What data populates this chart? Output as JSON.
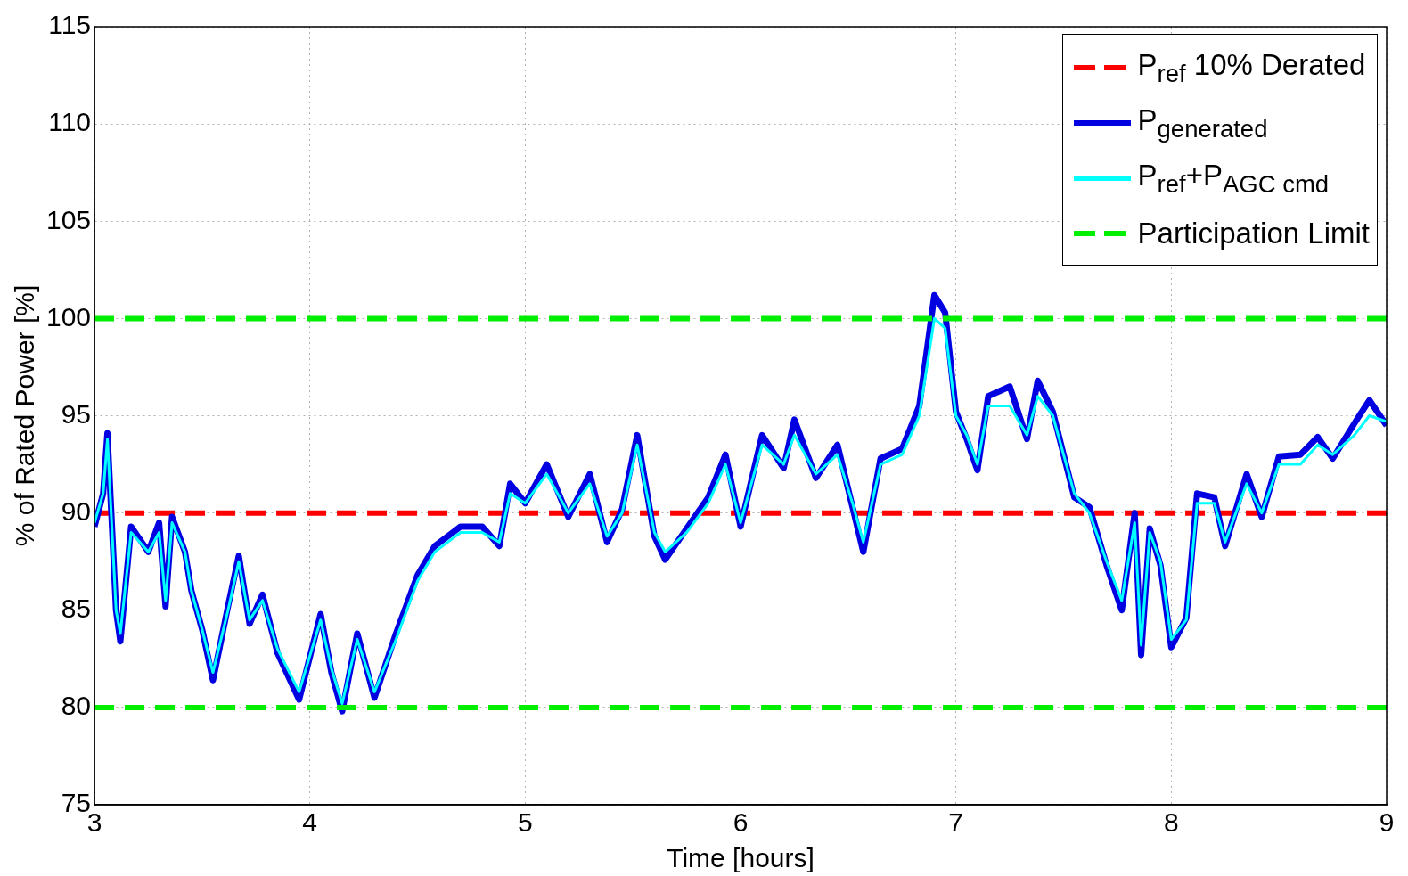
{
  "chart_data": {
    "type": "line",
    "xlabel": "Time [hours]",
    "ylabel": "% of Rated Power [%]",
    "xlim": [
      3,
      9
    ],
    "xticks": [
      3,
      4,
      5,
      6,
      7,
      8,
      9
    ],
    "ylim": [
      75,
      115
    ],
    "yticks": [
      75,
      80,
      85,
      90,
      95,
      100,
      105,
      110,
      115
    ],
    "grid": true,
    "legend": "top right",
    "marker": "none",
    "series": [
      {
        "name": "P$_{ref}$ 10% Derated",
        "color": "#ff0000",
        "line_style": "dashed",
        "x": [
          3,
          9
        ],
        "values": [
          90,
          90
        ]
      },
      {
        "name": "P$_{generated}$",
        "color": "#0000e0",
        "line_style": "solid",
        "x": [
          3,
          3.04,
          3.06,
          3.1,
          3.12,
          3.17,
          3.25,
          3.3,
          3.33,
          3.36,
          3.42,
          3.45,
          3.5,
          3.55,
          3.62,
          3.67,
          3.72,
          3.78,
          3.85,
          3.95,
          4.05,
          4.1,
          4.15,
          4.22,
          4.3,
          4.4,
          4.5,
          4.58,
          4.7,
          4.8,
          4.88,
          4.93,
          5,
          5.1,
          5.2,
          5.3,
          5.38,
          5.45,
          5.52,
          5.6,
          5.65,
          5.75,
          5.85,
          5.93,
          6,
          6.1,
          6.2,
          6.25,
          6.35,
          6.45,
          6.52,
          6.57,
          6.65,
          6.75,
          6.83,
          6.9,
          6.95,
          7,
          7.05,
          7.1,
          7.15,
          7.25,
          7.33,
          7.38,
          7.45,
          7.55,
          7.62,
          7.7,
          7.77,
          7.83,
          7.86,
          7.9,
          7.95,
          8,
          8.07,
          8.12,
          8.2,
          8.25,
          8.35,
          8.42,
          8.5,
          8.6,
          8.68,
          8.75,
          8.85,
          8.92,
          9
        ],
        "values": [
          89.3,
          91,
          94.1,
          85,
          83.4,
          89.3,
          88,
          89.5,
          85.2,
          89.8,
          88,
          86,
          84,
          81.4,
          85.2,
          87.8,
          84.3,
          85.8,
          82.8,
          80.4,
          84.8,
          81.8,
          79.8,
          83.8,
          80.5,
          83.8,
          86.8,
          88.3,
          89.3,
          89.3,
          88.3,
          91.5,
          90.5,
          92.5,
          89.8,
          92,
          88.5,
          90.2,
          94,
          88.8,
          87.6,
          89.2,
          90.8,
          93,
          89.3,
          94,
          92.3,
          94.8,
          91.8,
          93.5,
          90.3,
          88,
          92.8,
          93.3,
          95.5,
          101.2,
          100.3,
          95.2,
          93.8,
          92.2,
          96,
          96.5,
          93.8,
          96.8,
          95.2,
          90.8,
          90.3,
          87.3,
          85,
          90,
          82.7,
          89.2,
          87.3,
          83.1,
          84.6,
          91,
          90.8,
          88.3,
          92,
          89.8,
          92.9,
          93,
          93.9,
          92.8,
          94.6,
          95.8,
          94.5
        ]
      },
      {
        "name": "P$_{ref}$+P$_{AGC cmd}$",
        "color": "#00ffff",
        "line_style": "solid",
        "x": [
          3,
          3.04,
          3.06,
          3.1,
          3.12,
          3.17,
          3.25,
          3.3,
          3.33,
          3.36,
          3.42,
          3.45,
          3.5,
          3.55,
          3.62,
          3.67,
          3.72,
          3.78,
          3.85,
          3.95,
          4.05,
          4.1,
          4.15,
          4.22,
          4.3,
          4.4,
          4.5,
          4.58,
          4.7,
          4.8,
          4.88,
          4.93,
          5,
          5.1,
          5.2,
          5.3,
          5.38,
          5.45,
          5.52,
          5.6,
          5.65,
          5.75,
          5.85,
          5.93,
          6,
          6.1,
          6.2,
          6.25,
          6.35,
          6.45,
          6.52,
          6.57,
          6.65,
          6.75,
          6.83,
          6.9,
          6.95,
          7,
          7.05,
          7.1,
          7.15,
          7.25,
          7.33,
          7.38,
          7.45,
          7.55,
          7.62,
          7.7,
          7.77,
          7.83,
          7.86,
          7.9,
          7.95,
          8,
          8.07,
          8.12,
          8.2,
          8.25,
          8.35,
          8.42,
          8.5,
          8.6,
          8.68,
          8.75,
          8.85,
          8.92,
          9
        ],
        "values": [
          89.5,
          91,
          93.8,
          85,
          83.8,
          89,
          88,
          89,
          85.5,
          89.5,
          88,
          86,
          84,
          81.8,
          85,
          87.5,
          84.5,
          85.5,
          83,
          80.8,
          84.5,
          82,
          80.2,
          83.5,
          80.8,
          83.5,
          86.5,
          88,
          89,
          89,
          88.5,
          91,
          90.5,
          92,
          90,
          91.5,
          88.8,
          90,
          93.5,
          89,
          88,
          89,
          90.5,
          92.5,
          89.5,
          93.5,
          92.5,
          94,
          92,
          93,
          90.5,
          88.5,
          92.5,
          93,
          95,
          100,
          99.5,
          95,
          94,
          92.5,
          95.5,
          95.5,
          94,
          96,
          95,
          91,
          90,
          87.5,
          85.5,
          89.5,
          83.2,
          89,
          87.5,
          83.5,
          84.5,
          90.5,
          90.5,
          88.5,
          91.5,
          90,
          92.5,
          92.5,
          93.5,
          93,
          94,
          95,
          94.7
        ]
      },
      {
        "name": "Participation Limit",
        "color": "#00ee00",
        "line_style": "dashed",
        "x": [
          3,
          9
        ],
        "values": [
          100,
          100
        ]
      },
      {
        "color": "#00ee00",
        "line_style": "dashed",
        "x": [
          3,
          9
        ],
        "values": [
          80,
          80
        ]
      }
    ]
  }
}
